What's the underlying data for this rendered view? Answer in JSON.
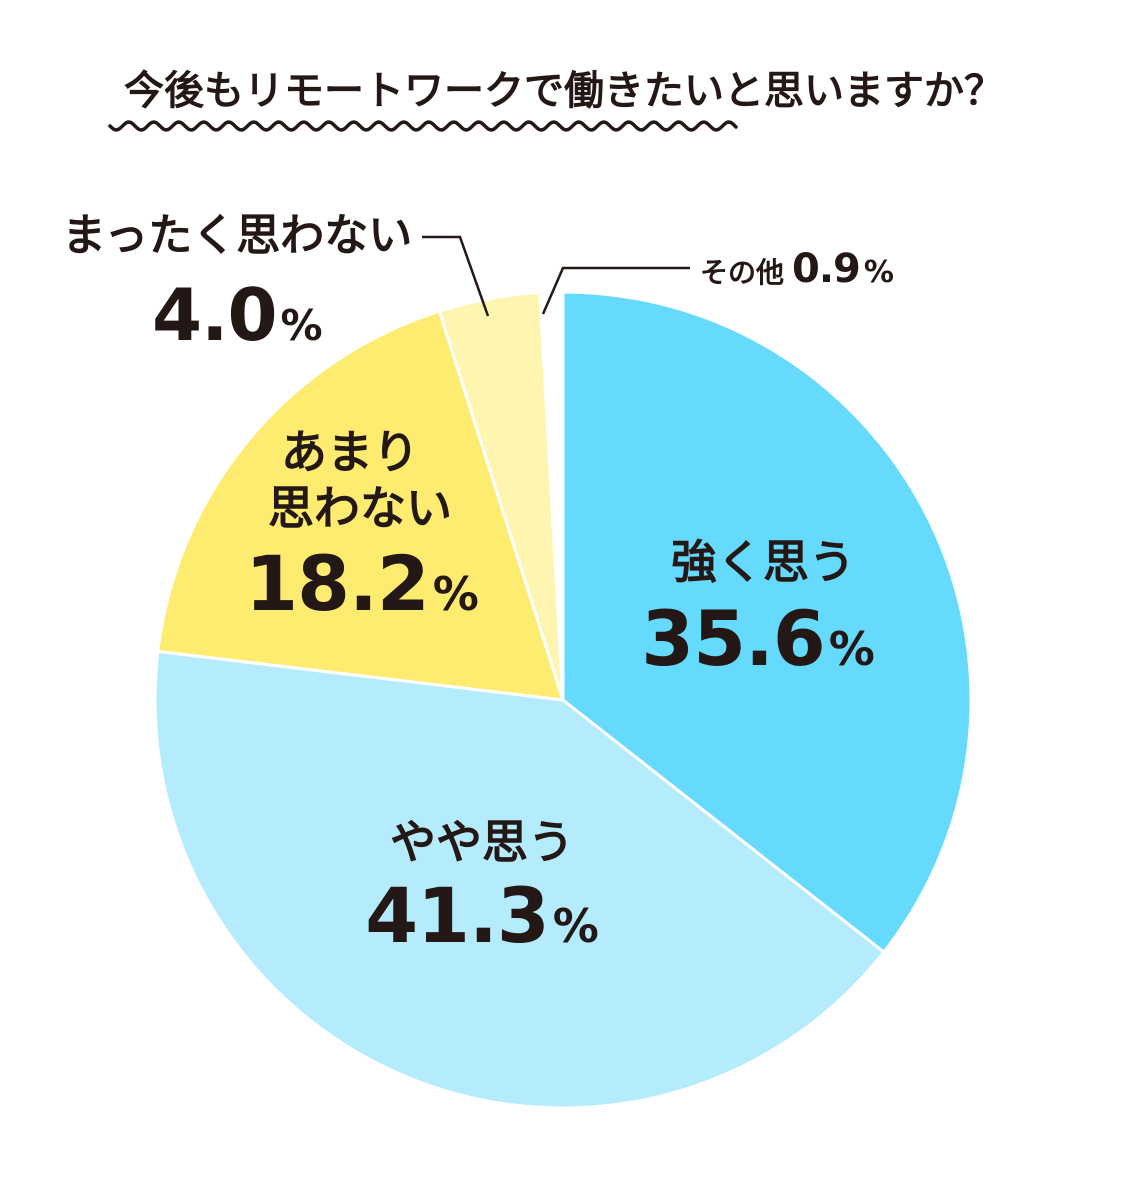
{
  "chart_data": {
    "type": "pie",
    "title": "今後もリモートワークで働きたいと思いますか？",
    "unit": "%",
    "slices": [
      {
        "label": "強く思う",
        "value": 35.6,
        "value_text": "35.6",
        "color": "#66dafc"
      },
      {
        "label": "やや思う",
        "value": 41.3,
        "value_text": "41.3",
        "color": "#b4ecfd"
      },
      {
        "label": "あまり思わない",
        "value": 18.2,
        "value_text": "18.2",
        "color": "#fdec70"
      },
      {
        "label": "まったく思わない",
        "value": 4.0,
        "value_text": "4.0",
        "color": "#fef6b0"
      },
      {
        "label": "その他",
        "value": 0.9,
        "value_text": "0.9",
        "color": "#ffffff"
      }
    ],
    "start": "12 o'clock",
    "direction": "clockwise",
    "legend": "none (direct labels)"
  },
  "colors": {
    "text": "#231815",
    "slice_border": "#ffffff",
    "leader_line": "#231815"
  }
}
